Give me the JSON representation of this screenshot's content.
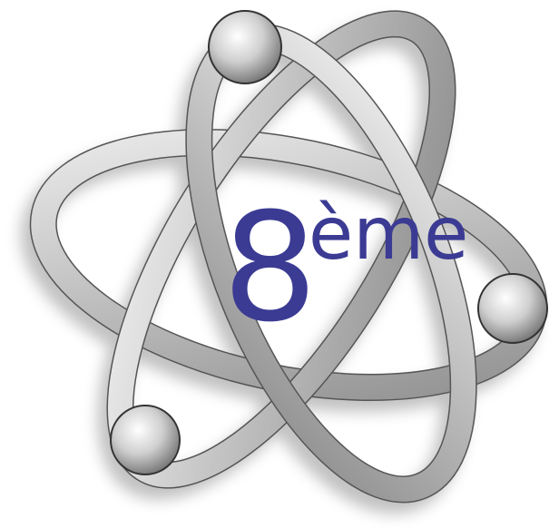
{
  "logo": {
    "number": "8",
    "superscript": "ème"
  }
}
